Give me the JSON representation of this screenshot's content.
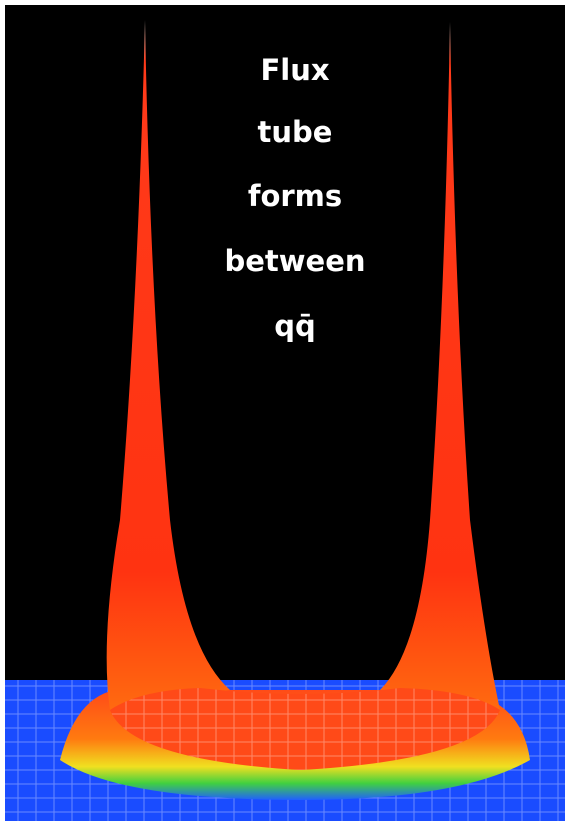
{
  "caption": {
    "lines": [
      "Flux",
      "tube",
      "forms",
      "between",
      "qq̄"
    ]
  }
}
